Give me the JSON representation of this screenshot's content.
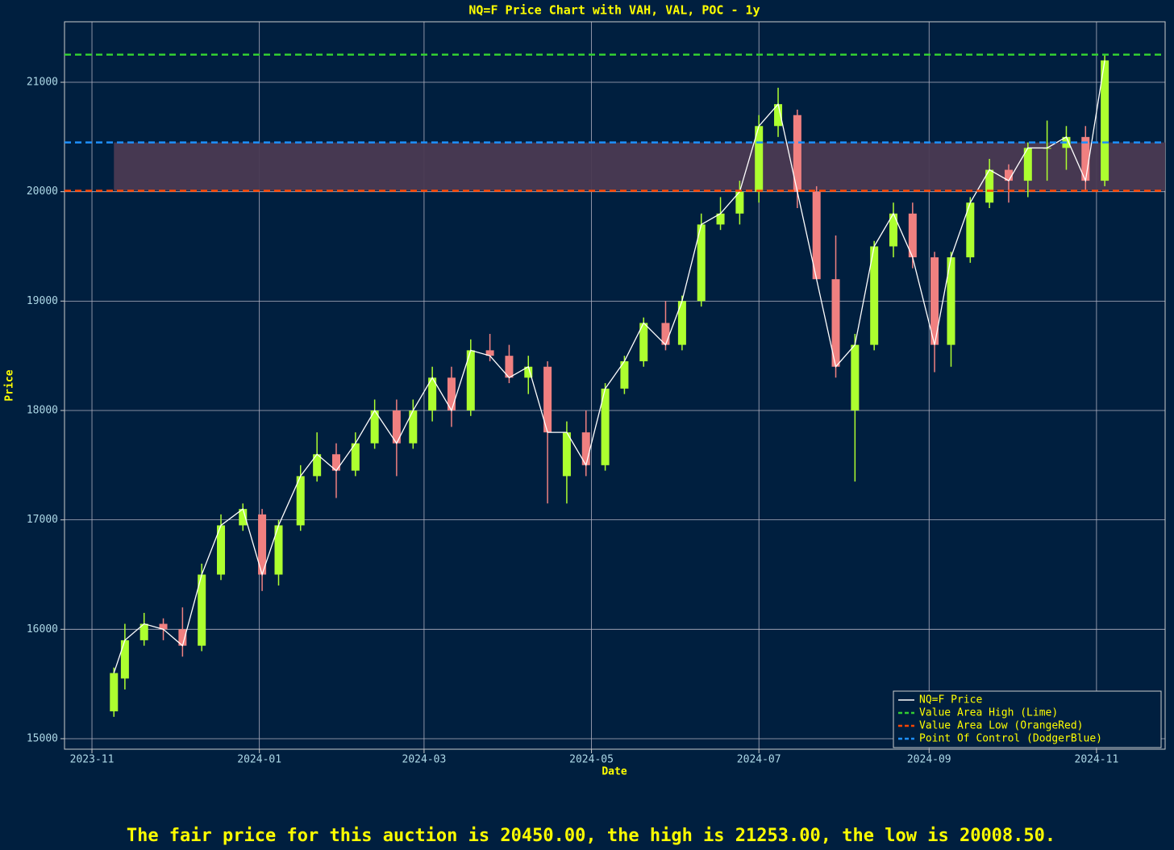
{
  "chart_data": {
    "type": "candlestick",
    "title": "NQ=F Price Chart with VAH, VAL, POC - 1y",
    "x_label": "Date",
    "y_label": "Price",
    "xlim": [
      "2023-10-22",
      "2024-11-26"
    ],
    "xticks": [
      {
        "value": "2023-11-01",
        "label": "2023-11"
      },
      {
        "value": "2024-01-01",
        "label": "2024-01"
      },
      {
        "value": "2024-03-01",
        "label": "2024-03"
      },
      {
        "value": "2024-05-01",
        "label": "2024-05"
      },
      {
        "value": "2024-07-01",
        "label": "2024-07"
      },
      {
        "value": "2024-09-01",
        "label": "2024-09"
      },
      {
        "value": "2024-11-01",
        "label": "2024-11"
      }
    ],
    "ylim": [
      14904,
      21553
    ],
    "yticks": [
      15000,
      16000,
      17000,
      18000,
      19000,
      20000,
      21000
    ],
    "grid": true,
    "legend": "lower right",
    "x": [
      "2023-11-09",
      "2023-11-13",
      "2023-11-20",
      "2023-11-27",
      "2023-12-04",
      "2023-12-11",
      "2023-12-18",
      "2023-12-26",
      "2024-01-02",
      "2024-01-08",
      "2024-01-16",
      "2024-01-22",
      "2024-01-29",
      "2024-02-05",
      "2024-02-12",
      "2024-02-20",
      "2024-02-26",
      "2024-03-04",
      "2024-03-11",
      "2024-03-18",
      "2024-03-25",
      "2024-04-01",
      "2024-04-08",
      "2024-04-15",
      "2024-04-22",
      "2024-04-29",
      "2024-05-06",
      "2024-05-13",
      "2024-05-20",
      "2024-05-28",
      "2024-06-03",
      "2024-06-10",
      "2024-06-17",
      "2024-06-24",
      "2024-07-01",
      "2024-07-08",
      "2024-07-15",
      "2024-07-22",
      "2024-07-29",
      "2024-08-05",
      "2024-08-12",
      "2024-08-19",
      "2024-08-26",
      "2024-09-03",
      "2024-09-09",
      "2024-09-16",
      "2024-09-23",
      "2024-09-30",
      "2024-10-07",
      "2024-10-14",
      "2024-10-21",
      "2024-10-28",
      "2024-11-04"
    ],
    "series": [
      {
        "name": "NQ=F Price",
        "color": "#ffffff",
        "up_color": "#adff2f",
        "down_color": "#f08080",
        "open": [
          15250,
          15550,
          15900,
          16050,
          16000,
          15850,
          16500,
          16950,
          17050,
          16500,
          16950,
          17400,
          17600,
          17450,
          17700,
          18000,
          17700,
          18000,
          18300,
          18000,
          18550,
          18500,
          18300,
          18400,
          17400,
          17800,
          17500,
          18200,
          18450,
          18800,
          18600,
          19000,
          19700,
          19800,
          20000,
          20600,
          20700,
          20000,
          19200,
          18000,
          18600,
          19500,
          19800,
          19400,
          18600,
          19400,
          19900,
          20200,
          20100,
          20400,
          20400,
          20500,
          20100
        ],
        "high": [
          15650,
          16050,
          16150,
          16100,
          16200,
          16600,
          17050,
          17150,
          17100,
          17000,
          17500,
          17800,
          17700,
          17800,
          18100,
          18100,
          18100,
          18400,
          18400,
          18650,
          18700,
          18600,
          18500,
          18450,
          17900,
          18000,
          18250,
          18500,
          18850,
          19000,
          19050,
          19800,
          19950,
          20100,
          20700,
          20950,
          20750,
          20050,
          19600,
          18700,
          19550,
          19900,
          19900,
          19450,
          19450,
          19950,
          20300,
          20250,
          20450,
          20650,
          20600,
          20600,
          21253
        ],
        "low": [
          15200,
          15450,
          15850,
          15900,
          15750,
          15800,
          16450,
          16900,
          16350,
          16400,
          16900,
          17350,
          17200,
          17400,
          17650,
          17400,
          17650,
          17900,
          17850,
          17950,
          18450,
          18250,
          18150,
          17150,
          17150,
          17400,
          17450,
          18150,
          18400,
          18550,
          18550,
          18950,
          19650,
          19700,
          19900,
          20500,
          19850,
          19200,
          18300,
          17350,
          18550,
          19400,
          19300,
          18350,
          18400,
          19350,
          19850,
          19900,
          19950,
          20100,
          20200,
          20008.5,
          20050
        ],
        "close": [
          15600,
          15900,
          16050,
          16000,
          15850,
          16500,
          16950,
          17100,
          16500,
          16950,
          17400,
          17600,
          17450,
          17700,
          18000,
          17700,
          18000,
          18300,
          18000,
          18550,
          18500,
          18300,
          18400,
          17800,
          17800,
          17500,
          18200,
          18450,
          18800,
          18600,
          19000,
          19700,
          19800,
          20000,
          20600,
          20800,
          20000,
          19200,
          18400,
          18600,
          19500,
          19800,
          19400,
          18600,
          19400,
          19900,
          20200,
          20100,
          20400,
          20400,
          20500,
          20100,
          21200
        ]
      }
    ],
    "hlines": [
      {
        "name": "Value Area High (Lime)",
        "color": "#32cd32",
        "value": 21253
      },
      {
        "name": "Value Area Low (OrangeRed)",
        "color": "#ff4500",
        "value": 20008.5
      },
      {
        "name": "Point Of Control (DodgerBlue)",
        "color": "#1e90ff",
        "value": 20450
      }
    ],
    "shade_color": "#4a3a52",
    "footer": "The fair price for this auction is 20450.00, the high is 21253.00, the low is 20008.50."
  }
}
